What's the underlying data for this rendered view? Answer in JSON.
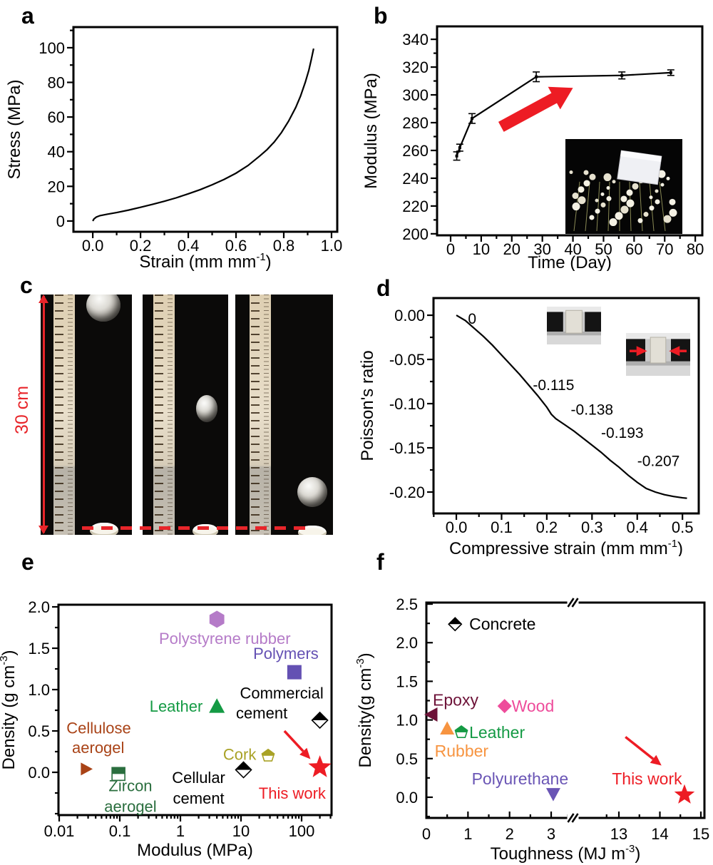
{
  "figure": {
    "background": "#ffffff",
    "accent_red": "#ed1c24",
    "panels": [
      {
        "id": "a",
        "label": "a"
      },
      {
        "id": "b",
        "label": "b"
      },
      {
        "id": "c",
        "label": "c"
      },
      {
        "id": "d",
        "label": "d"
      },
      {
        "id": "e",
        "label": "e"
      },
      {
        "id": "f",
        "label": "f"
      }
    ],
    "panel_c": {
      "measurement_label": "30 cm",
      "photos": [
        {
          "name": "ball-drop-photo-top",
          "ball_position": "top"
        },
        {
          "name": "ball-drop-photo-middle",
          "ball_position": "middle"
        },
        {
          "name": "ball-drop-photo-bottom",
          "ball_position": "bottom"
        }
      ]
    }
  },
  "chart_data": [
    {
      "panel": "a",
      "type": "line",
      "xlabel": [
        {
          "t": "Strain (mm mm"
        },
        {
          "t": "-1",
          "sup": true
        },
        {
          "t": ")"
        }
      ],
      "ylabel": [
        {
          "t": "Stress (MPa)"
        }
      ],
      "xlim": [
        -0.081,
        1.024
      ],
      "ylim": [
        -6.2,
        111.9
      ],
      "xticks": {
        "values": [
          0,
          0.2,
          0.4,
          0.6,
          0.8,
          1
        ],
        "labels": [
          "0.0",
          "0.2",
          "0.4",
          "0.6",
          "0.8",
          "1.0"
        ],
        "minor_step": 0.1
      },
      "yticks": {
        "values": [
          0,
          20,
          40,
          60,
          80,
          100
        ],
        "labels": [
          "0",
          "20",
          "40",
          "60",
          "80",
          "100"
        ],
        "minor_step": 10
      },
      "series": [
        {
          "name": "stress-strain-curve",
          "color": "#000000",
          "points": [
            [
              0,
              0
            ],
            [
              0.005,
              1.2
            ],
            [
              0.015,
              2.3
            ],
            [
              0.03,
              3.1
            ],
            [
              0.06,
              3.9
            ],
            [
              0.1,
              4.9
            ],
            [
              0.15,
              6.3
            ],
            [
              0.2,
              7.9
            ],
            [
              0.25,
              9.6
            ],
            [
              0.3,
              11.4
            ],
            [
              0.35,
              13.4
            ],
            [
              0.4,
              15.7
            ],
            [
              0.45,
              18.1
            ],
            [
              0.5,
              20.9
            ],
            [
              0.55,
              24
            ],
            [
              0.6,
              27.6
            ],
            [
              0.65,
              32
            ],
            [
              0.7,
              37.6
            ],
            [
              0.73,
              41.2
            ],
            [
              0.76,
              45.6
            ],
            [
              0.79,
              51
            ],
            [
              0.82,
              57.6
            ],
            [
              0.85,
              65.5
            ],
            [
              0.87,
              72
            ],
            [
              0.89,
              80
            ],
            [
              0.905,
              87
            ],
            [
              0.915,
              93
            ],
            [
              0.925,
              99.5
            ]
          ]
        }
      ]
    },
    {
      "panel": "b",
      "type": "line",
      "xlabel": [
        {
          "t": "Time (Day)"
        }
      ],
      "ylabel": [
        {
          "t": "Modulus (MPa)"
        }
      ],
      "xlim": [
        -4.43,
        82.3
      ],
      "ylim": [
        198.9,
        349.3
      ],
      "xticks": {
        "values": [
          0,
          10,
          20,
          30,
          40,
          50,
          60,
          70,
          80
        ],
        "labels": [
          "0",
          "10",
          "20",
          "30",
          "40",
          "50",
          "60",
          "70",
          "80"
        ],
        "minor_step": 5
      },
      "yticks": {
        "values": [
          200,
          220,
          240,
          260,
          280,
          300,
          320,
          340
        ],
        "labels": [
          "200",
          "220",
          "240",
          "260",
          "280",
          "300",
          "320",
          "340"
        ],
        "minor_step": 10
      },
      "series": [
        {
          "name": "modulus-aging-curve",
          "color": "#000000",
          "marker": "dot",
          "points": [
            [
              2,
              256
            ],
            [
              3,
              262
            ],
            [
              7,
              283
            ],
            [
              28,
              313
            ],
            [
              56,
              314
            ],
            [
              72,
              316
            ]
          ],
          "error_y": [
            3,
            2.5,
            3.5,
            3.5,
            2.5,
            2
          ]
        }
      ],
      "arrows": [
        {
          "name": "increase-arrow",
          "from": [
            16.5,
            277
          ],
          "to": [
            40,
            305
          ],
          "color": "#ed1c24",
          "style": "thick"
        }
      ],
      "insets": [
        {
          "name": "aerogel-block-on-flowers-photo"
        }
      ]
    },
    {
      "panel": "d",
      "type": "line",
      "xlabel": [
        {
          "t": "Compressive strain (mm mm"
        },
        {
          "t": "-1",
          "sup": true
        },
        {
          "t": ")"
        }
      ],
      "ylabel": [
        {
          "t": "Poisson's ratio"
        }
      ],
      "xlim": [
        -0.0505,
        0.536
      ],
      "ylim": [
        -0.2242,
        0.0194
      ],
      "xticks": {
        "values": [
          0,
          0.1,
          0.2,
          0.3,
          0.4,
          0.5
        ],
        "labels": [
          "0.0",
          "0.1",
          "0.2",
          "0.3",
          "0.4",
          "0.5"
        ],
        "minor_step": 0.05
      },
      "yticks": {
        "values": [
          0,
          -0.05,
          -0.1,
          -0.15,
          -0.2
        ],
        "labels": [
          "0.00",
          "-0.05",
          "-0.10",
          "-0.15",
          "-0.20"
        ],
        "minor_step": 0.025
      },
      "series": [
        {
          "name": "poissons-ratio-curve",
          "color": "#000000",
          "points": [
            [
              0,
              0
            ],
            [
              0.02,
              -0.006
            ],
            [
              0.04,
              -0.015
            ],
            [
              0.06,
              -0.024
            ],
            [
              0.08,
              -0.034
            ],
            [
              0.1,
              -0.045
            ],
            [
              0.12,
              -0.056
            ],
            [
              0.14,
              -0.067
            ],
            [
              0.16,
              -0.079
            ],
            [
              0.18,
              -0.091
            ],
            [
              0.2,
              -0.104
            ],
            [
              0.21,
              -0.112
            ],
            [
              0.22,
              -0.117
            ],
            [
              0.24,
              -0.124
            ],
            [
              0.26,
              -0.131
            ],
            [
              0.28,
              -0.139
            ],
            [
              0.3,
              -0.147
            ],
            [
              0.32,
              -0.155
            ],
            [
              0.34,
              -0.164
            ],
            [
              0.36,
              -0.172
            ],
            [
              0.38,
              -0.181
            ],
            [
              0.4,
              -0.189
            ],
            [
              0.42,
              -0.196
            ],
            [
              0.44,
              -0.2
            ],
            [
              0.46,
              -0.203
            ],
            [
              0.48,
              -0.205
            ],
            [
              0.5,
              -0.2065
            ],
            [
              0.51,
              -0.207
            ]
          ]
        }
      ],
      "annotations": [
        {
          "text": "0",
          "x": 0.035,
          "y": -0.004,
          "color": "#000000"
        },
        {
          "text": "-0.115",
          "x": 0.215,
          "y": -0.079,
          "color": "#000000"
        },
        {
          "text": "-0.138",
          "x": 0.3,
          "y": -0.107,
          "color": "#000000"
        },
        {
          "text": "-0.193",
          "x": 0.367,
          "y": -0.133,
          "color": "#000000"
        },
        {
          "text": "-0.207",
          "x": 0.447,
          "y": -0.165,
          "color": "#000000"
        }
      ],
      "insets": [
        {
          "name": "compression-initial-photo"
        },
        {
          "name": "compression-lateral-shrink-photo",
          "arrows": true
        }
      ]
    },
    {
      "panel": "e",
      "type": "scatter",
      "xscale": "log",
      "xlabel": [
        {
          "t": "Modulus (MPa)"
        }
      ],
      "ylabel": [
        {
          "t": "Density (g cm"
        },
        {
          "t": "-3",
          "sup": true
        },
        {
          "t": ")"
        }
      ],
      "xlog": [
        -2.012,
        2.494
      ],
      "ylim": [
        -0.517,
        2.026
      ],
      "xticks": {
        "decades": [
          -2,
          -1,
          0,
          1,
          2
        ],
        "labels": [
          "0.01",
          "0.1",
          "1",
          "10",
          "100"
        ]
      },
      "yticks": {
        "values": [
          0,
          0.5,
          1,
          1.5,
          2
        ],
        "labels": [
          "0.0",
          "0.5",
          "1.0",
          "1.5",
          "2.0"
        ],
        "minor_step": 0.25
      },
      "points": [
        {
          "name": "polystyrene-rubber",
          "x": 4,
          "y": 1.85,
          "marker": "hexagon",
          "size": 12,
          "color": "#b57bc8"
        },
        {
          "name": "polymers",
          "x": 76,
          "y": 1.21,
          "marker": "square",
          "size": 10,
          "color": "#6451b3"
        },
        {
          "name": "leather",
          "x": 4,
          "y": 0.8,
          "marker": "triangle-up",
          "size": 11,
          "color": "#149a44"
        },
        {
          "name": "commercial-cement",
          "x": 200,
          "y": 0.63,
          "marker": "diamond-half",
          "size": 11,
          "color": "#000000"
        },
        {
          "name": "cellulose-aerogel",
          "x": 0.028,
          "y": 0.04,
          "marker": "triangle-right",
          "size": 9,
          "color": "#a94317"
        },
        {
          "name": "zircon-aerogel",
          "x": 0.095,
          "y": -0.02,
          "marker": "square-half",
          "size": 9,
          "color": "#2a6e3e"
        },
        {
          "name": "cork",
          "x": 28,
          "y": 0.2,
          "marker": "pentagon-half",
          "size": 9,
          "color": "#a9a226"
        },
        {
          "name": "cellular-cement",
          "x": 11,
          "y": 0.03,
          "marker": "diamond-half",
          "size": 11,
          "color": "#000000"
        },
        {
          "name": "this-work",
          "x": 200,
          "y": 0.06,
          "marker": "star",
          "size": 17,
          "color": "#ed1c24"
        }
      ],
      "labels": [
        {
          "text": "Polystyrene rubber",
          "x": 5.4,
          "y": 1.62,
          "color": "#b57bc8",
          "anchor": "middle"
        },
        {
          "text": "Polymers",
          "x": 55,
          "y": 1.44,
          "color": "#6451b3",
          "anchor": "middle"
        },
        {
          "text": "Leather",
          "x": 0.85,
          "y": 0.8,
          "color": "#149a44",
          "anchor": "middle"
        },
        {
          "text": "Commercial",
          "x": 47,
          "y": 0.96,
          "color": "#000000",
          "anchor": "middle"
        },
        {
          "text": "cement",
          "x": 22,
          "y": 0.72,
          "color": "#000000",
          "anchor": "middle"
        },
        {
          "text": "Cellulose",
          "x": 0.045,
          "y": 0.54,
          "color": "#a94317",
          "anchor": "middle"
        },
        {
          "text": "aerogel",
          "x": 0.044,
          "y": 0.3,
          "color": "#a94317",
          "anchor": "middle"
        },
        {
          "text": "Zircon",
          "x": 0.15,
          "y": -0.16,
          "color": "#2a6e3e",
          "anchor": "middle"
        },
        {
          "text": "aerogel",
          "x": 0.15,
          "y": -0.41,
          "color": "#2a6e3e",
          "anchor": "middle"
        },
        {
          "text": "Cork",
          "x": 9.5,
          "y": 0.22,
          "color": "#a9a226",
          "anchor": "middle"
        },
        {
          "text": "Cellular",
          "x": 2,
          "y": -0.06,
          "color": "#000000",
          "anchor": "middle"
        },
        {
          "text": "cement",
          "x": 2,
          "y": -0.31,
          "color": "#000000",
          "anchor": "middle"
        },
        {
          "text": "This work",
          "x": 70,
          "y": -0.25,
          "color": "#ed1c24",
          "anchor": "middle"
        }
      ],
      "arrows": [
        {
          "name": "this-work-arrow",
          "from": [
            52,
            0.5
          ],
          "to": [
            140,
            0.16
          ],
          "color": "#ed1c24",
          "style": "thin"
        }
      ]
    },
    {
      "panel": "f",
      "type": "scatter",
      "xlabel": [
        {
          "t": "Toughness (MJ m"
        },
        {
          "t": "-3",
          "sup": true
        },
        {
          "t": ")"
        }
      ],
      "ylabel": [
        {
          "t": "Density(g cm"
        },
        {
          "t": "-3",
          "sup": true
        },
        {
          "t": ")"
        }
      ],
      "xbreak": {
        "x1": 3.6,
        "k1": 0.1496,
        "x2": 12.55,
        "f2": 0.626,
        "k2": 0.1474,
        "mark_frac": 0.527
      },
      "ylim": [
        -0.268,
        2.519
      ],
      "xticks": {
        "values": [
          0,
          1,
          2,
          3,
          13,
          14,
          15
        ],
        "labels": [
          "0",
          "1",
          "2",
          "3",
          "13",
          "14",
          "15"
        ],
        "minor": [
          0.5,
          1.5,
          2.5,
          3.4,
          12.7,
          13.5,
          14.5
        ]
      },
      "yticks": {
        "values": [
          0,
          0.5,
          1,
          1.5,
          2,
          2.5
        ],
        "labels": [
          "0.0",
          "0.5",
          "1.0",
          "1.5",
          "2.0",
          "2.5"
        ],
        "minor_step": 0.25
      },
      "points": [
        {
          "name": "concrete",
          "x": 0.69,
          "y": 2.24,
          "marker": "diamond-half",
          "size": 9,
          "color": "#000000"
        },
        {
          "name": "epoxy",
          "x": 0.12,
          "y": 1.07,
          "marker": "triangle-left",
          "size": 10,
          "color": "#6d1238"
        },
        {
          "name": "wood",
          "x": 1.88,
          "y": 1.18,
          "marker": "diamond",
          "size": 10,
          "color": "#ee4c9b"
        },
        {
          "name": "rubber",
          "x": 0.5,
          "y": 0.89,
          "marker": "triangle-up",
          "size": 10,
          "color": "#f79440"
        },
        {
          "name": "leather",
          "x": 0.84,
          "y": 0.84,
          "marker": "pentagon-half",
          "size": 9,
          "color": "#149a44"
        },
        {
          "name": "polyurethane",
          "x": 3.05,
          "y": 0.04,
          "marker": "triangle-down",
          "size": 10,
          "color": "#6a55b5"
        },
        {
          "name": "this-work",
          "x": 14.6,
          "y": 0.03,
          "marker": "star",
          "size": 15,
          "color": "#ed1c24"
        }
      ],
      "labels": [
        {
          "text": "Concrete",
          "x": 1.03,
          "y": 2.24,
          "color": "#000000",
          "anchor": "start"
        },
        {
          "text": "Epoxy",
          "x": 0.155,
          "y": 1.26,
          "color": "#6d1238",
          "anchor": "start"
        },
        {
          "text": "Wood",
          "x": 2.05,
          "y": 1.18,
          "color": "#ee4c9b",
          "anchor": "start"
        },
        {
          "text": "Rubber",
          "x": 0.2,
          "y": 0.6,
          "color": "#f79440",
          "anchor": "start"
        },
        {
          "text": "Leather",
          "x": 1.03,
          "y": 0.84,
          "color": "#149a44",
          "anchor": "start"
        },
        {
          "text": "Polyurethane",
          "x": 1.09,
          "y": 0.24,
          "color": "#6a55b5",
          "anchor": "start"
        },
        {
          "text": "This work",
          "x": 12.83,
          "y": 0.24,
          "color": "#ed1c24",
          "anchor": "start"
        }
      ],
      "arrows": [
        {
          "name": "this-work-arrow",
          "from": [
            13.16,
            0.78
          ],
          "to": [
            14.04,
            0.41
          ],
          "color": "#ed1c24",
          "style": "thin"
        }
      ]
    }
  ]
}
